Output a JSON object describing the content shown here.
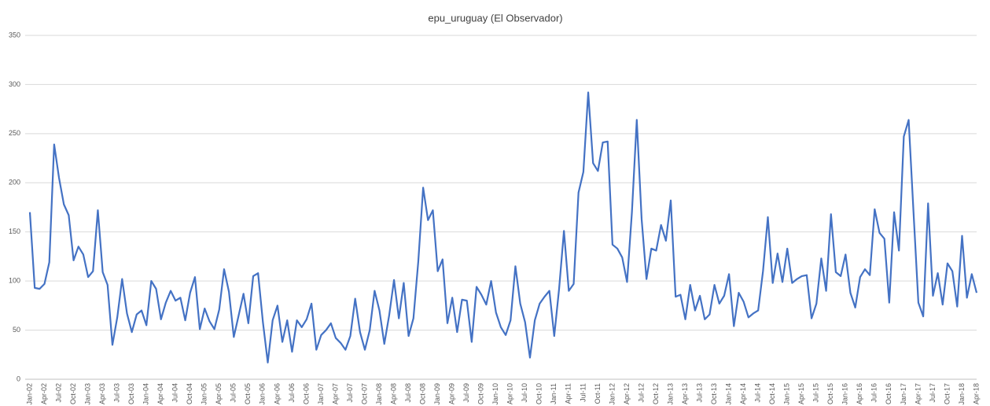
{
  "chart_data": {
    "type": "line",
    "title": "epu_uruguay (El Observador)",
    "categories": [
      "Jan-02",
      null,
      null,
      "Apr-02",
      null,
      null,
      "Jul-02",
      null,
      null,
      "Oct-02",
      null,
      null,
      "Jan-03",
      null,
      null,
      "Apr-03",
      null,
      null,
      "Jul-03",
      null,
      null,
      "Oct-03",
      null,
      null,
      "Jan-04",
      null,
      null,
      "Apr-04",
      null,
      null,
      "Jul-04",
      null,
      null,
      "Oct-04",
      null,
      null,
      "Jan-05",
      null,
      null,
      "Apr-05",
      null,
      null,
      "Jul-05",
      null,
      null,
      "Oct-05",
      null,
      null,
      "Jan-06",
      null,
      null,
      "Apr-06",
      null,
      null,
      "Jul-06",
      null,
      null,
      "Oct-06",
      null,
      null,
      "Jan-07",
      null,
      null,
      "Apr-07",
      null,
      null,
      "Jul-07",
      null,
      null,
      "Oct-07",
      null,
      null,
      "Jan-08",
      null,
      null,
      "Apr-08",
      null,
      null,
      "Jul-08",
      null,
      null,
      "Oct-08",
      null,
      null,
      "Jan-09",
      null,
      null,
      "Apr-09",
      null,
      null,
      "Jul-09",
      null,
      null,
      "Oct-09",
      null,
      null,
      "Jan-10",
      null,
      null,
      "Apr-10",
      null,
      null,
      "Jul-10",
      null,
      null,
      "Oct-10",
      null,
      null,
      "Jan-11",
      null,
      null,
      "Apr-11",
      null,
      null,
      "Jul-11",
      null,
      null,
      "Oct-11",
      null,
      null,
      "Jan-12",
      null,
      null,
      "Apr-12",
      null,
      null,
      "Jul-12",
      null,
      null,
      "Oct-12",
      null,
      null,
      "Jan-13",
      null,
      null,
      "Apr-13",
      null,
      null,
      "Jul-13",
      null,
      null,
      "Oct-13",
      null,
      null,
      "Jan-14",
      null,
      null,
      "Apr-14",
      null,
      null,
      "Jul-14",
      null,
      null,
      "Oct-14",
      null,
      null,
      "Jan-15",
      null,
      null,
      "Apr-15",
      null,
      null,
      "Jul-15",
      null,
      null,
      "Oct-15",
      null,
      null,
      "Jan-16",
      null,
      null,
      "Apr-16",
      null,
      null,
      "Jul-16",
      null,
      null,
      "Oct-16",
      null,
      null,
      "Jan-17",
      null,
      null,
      "Apr-17",
      null,
      null,
      "Jul-17",
      null,
      null,
      "Oct-17",
      null,
      null,
      "Jan-18",
      null,
      null,
      "Apr-18"
    ],
    "values": [
      170,
      93,
      92,
      97,
      119,
      239,
      205,
      178,
      167,
      121,
      135,
      127,
      104,
      110,
      172,
      109,
      96,
      35,
      63,
      102,
      67,
      48,
      66,
      70,
      55,
      100,
      92,
      61,
      78,
      90,
      80,
      83,
      60,
      88,
      104,
      51,
      72,
      59,
      51,
      71,
      112,
      89,
      43,
      65,
      87,
      57,
      105,
      108,
      58,
      17,
      60,
      75,
      38,
      60,
      28,
      60,
      53,
      61,
      77,
      30,
      45,
      50,
      57,
      42,
      37,
      30,
      44,
      82,
      48,
      30,
      50,
      90,
      70,
      36,
      65,
      101,
      62,
      98,
      44,
      62,
      120,
      195,
      162,
      172,
      110,
      122,
      57,
      83,
      48,
      81,
      80,
      38,
      94,
      86,
      76,
      100,
      68,
      53,
      45,
      60,
      115,
      77,
      58,
      22,
      60,
      77,
      84,
      90,
      44,
      92,
      151,
      90,
      97,
      190,
      211,
      292,
      220,
      212,
      241,
      242,
      137,
      133,
      124,
      99,
      170,
      264,
      163,
      102,
      133,
      131,
      157,
      141,
      182,
      84,
      86,
      61,
      96,
      70,
      85,
      61,
      66,
      96,
      77,
      85,
      107,
      54,
      88,
      79,
      63,
      67,
      70,
      110,
      165,
      98,
      128,
      99,
      133,
      98,
      102,
      105,
      106,
      62,
      77,
      123,
      90,
      168,
      109,
      105,
      127,
      88,
      73,
      104,
      112,
      106,
      173,
      149,
      143,
      78,
      170,
      131,
      247,
      264,
      170,
      78,
      64,
      179,
      85,
      108,
      76,
      118,
      110,
      74,
      146,
      83,
      107,
      88
    ],
    "color": "#4472c4",
    "ylim": [
      0,
      350
    ],
    "yticks": [
      0,
      50,
      100,
      150,
      200,
      250,
      300,
      350
    ],
    "grid": true
  }
}
